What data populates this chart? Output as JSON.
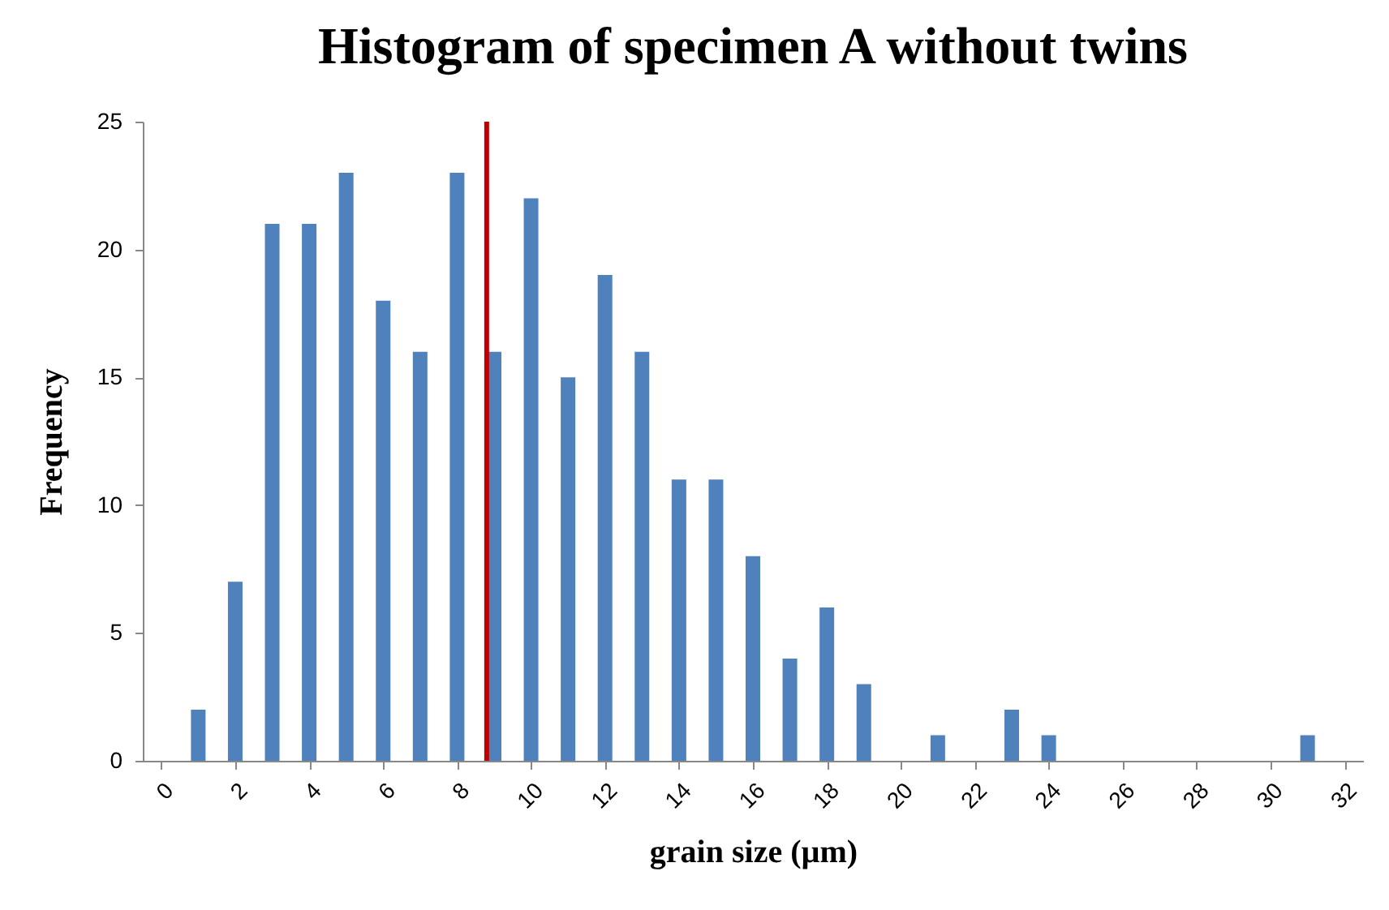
{
  "chart_data": {
    "type": "bar",
    "title": "Histogram of specimen A without twins",
    "xlabel": "grain size (µm)",
    "ylabel": "Frequency",
    "x": [
      0,
      1,
      2,
      3,
      4,
      5,
      6,
      7,
      8,
      9,
      10,
      11,
      12,
      13,
      14,
      15,
      16,
      17,
      18,
      19,
      20,
      21,
      22,
      23,
      24,
      25,
      26,
      27,
      28,
      29,
      30,
      31,
      32
    ],
    "values": [
      0,
      2,
      7,
      21,
      21,
      23,
      18,
      16,
      23,
      16,
      22,
      15,
      19,
      16,
      11,
      11,
      8,
      4,
      6,
      3,
      0,
      1,
      0,
      2,
      1,
      0,
      0,
      0,
      0,
      0,
      0,
      1,
      0
    ],
    "color": "#4f81bd",
    "xlim": [
      -0.5,
      32.5
    ],
    "xticks": [
      0,
      2,
      4,
      6,
      8,
      10,
      12,
      14,
      16,
      18,
      20,
      22,
      24,
      26,
      28,
      30,
      32
    ],
    "ylim": [
      0,
      25
    ],
    "yticks": [
      0,
      5,
      10,
      15,
      20,
      25
    ],
    "ref_lines": [
      {
        "axis": "x",
        "value": 8.8,
        "color": "#c00000"
      }
    ],
    "grid": false
  }
}
